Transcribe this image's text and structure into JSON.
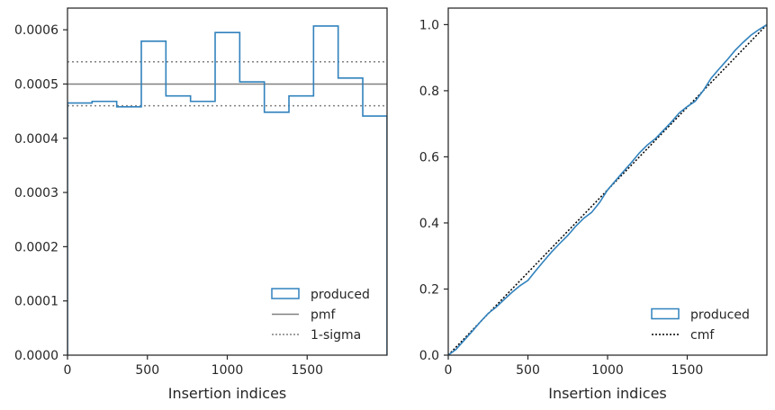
{
  "chart_data": [
    {
      "type": "step",
      "xlabel": "Insertion indices",
      "ylabel": "",
      "xlim": [
        0,
        2000
      ],
      "ylim": [
        0,
        0.00064
      ],
      "xticks": [
        "0",
        "500",
        "1000",
        "1500"
      ],
      "xtick_values": [
        0,
        500,
        1000,
        1500
      ],
      "yticks": [
        "0.0000",
        "0.0001",
        "0.0002",
        "0.0003",
        "0.0004",
        "0.0005",
        "0.0006"
      ],
      "ytick_values": [
        0,
        0.0001,
        0.0002,
        0.0003,
        0.0004,
        0.0005,
        0.0006
      ],
      "bin_edges": [
        0,
        154,
        308,
        462,
        616,
        770,
        924,
        1078,
        1232,
        1386,
        1540,
        1694,
        1848,
        2000
      ],
      "series": [
        {
          "name": "produced",
          "style": "step-histogram",
          "color": "#3182bd",
          "values": [
            0.000465,
            0.000468,
            0.000458,
            0.000579,
            0.000478,
            0.000468,
            0.000595,
            0.000504,
            0.000448,
            0.000478,
            0.000607,
            0.000511,
            0.000441
          ]
        }
      ],
      "reference_lines": [
        {
          "name": "pmf",
          "value": 0.0005,
          "color": "#808080",
          "dash": "solid"
        },
        {
          "name": "1-sigma",
          "values": [
            0.000541,
            0.00046
          ],
          "color": "#808080",
          "dash": "dotted"
        }
      ],
      "legend": {
        "placement": "lower-right",
        "entries": [
          {
            "label": "produced",
            "kind": "patch"
          },
          {
            "label": "pmf",
            "kind": "solid-line"
          },
          {
            "label": "1-sigma",
            "kind": "dotted-line"
          }
        ]
      }
    },
    {
      "type": "line",
      "xlabel": "Insertion indices",
      "ylabel": "",
      "xlim": [
        0,
        2000
      ],
      "ylim": [
        0,
        1.05
      ],
      "xticks": [
        "0",
        "500",
        "1000",
        "1500"
      ],
      "xtick_values": [
        0,
        500,
        1000,
        1500
      ],
      "yticks": [
        "0.0",
        "0.2",
        "0.4",
        "0.6",
        "0.8",
        "1.0"
      ],
      "ytick_values": [
        0,
        0.2,
        0.4,
        0.6,
        0.8,
        1.0
      ],
      "series": [
        {
          "name": "produced",
          "style": "cumulative-step",
          "color": "#3182bd",
          "x": [
            0,
            50,
            100,
            150,
            200,
            250,
            300,
            350,
            400,
            450,
            500,
            550,
            600,
            650,
            700,
            750,
            800,
            850,
            900,
            950,
            1000,
            1050,
            1100,
            1150,
            1200,
            1250,
            1300,
            1350,
            1400,
            1450,
            1500,
            1550,
            1600,
            1650,
            1700,
            1750,
            1800,
            1850,
            1900,
            1950,
            2000
          ],
          "values": [
            0,
            0.018,
            0.045,
            0.072,
            0.1,
            0.126,
            0.145,
            0.168,
            0.19,
            0.21,
            0.226,
            0.256,
            0.285,
            0.313,
            0.338,
            0.362,
            0.39,
            0.414,
            0.432,
            0.462,
            0.5,
            0.528,
            0.556,
            0.583,
            0.612,
            0.636,
            0.655,
            0.68,
            0.705,
            0.733,
            0.752,
            0.768,
            0.8,
            0.838,
            0.866,
            0.893,
            0.922,
            0.946,
            0.968,
            0.985,
            1.0
          ]
        },
        {
          "name": "cmf",
          "style": "dotted-line",
          "color": "#000000",
          "x": [
            0,
            2000
          ],
          "values": [
            0,
            1.0
          ]
        }
      ],
      "legend": {
        "placement": "lower-right",
        "entries": [
          {
            "label": "produced",
            "kind": "patch"
          },
          {
            "label": "cmf",
            "kind": "dotted-line"
          }
        ]
      }
    }
  ]
}
